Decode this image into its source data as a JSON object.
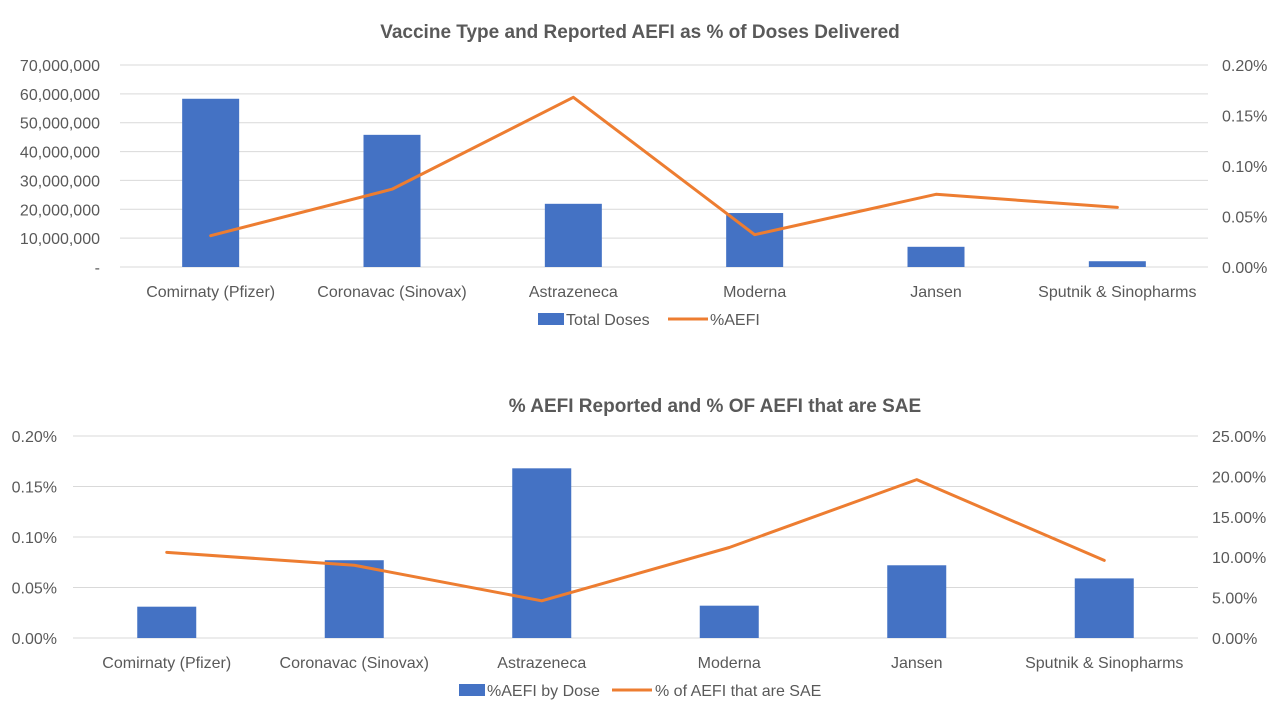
{
  "colors": {
    "bar": "#4472c4",
    "line": "#ed7d31",
    "grid": "#d9d9d9",
    "text": "#595959"
  },
  "chart_data": [
    {
      "type": "bar",
      "title": "Vaccine Type and Reported AEFI as % of Doses Delivered",
      "categories": [
        "Comirnaty (Pfizer)",
        "Coronavac (Sinovax)",
        "Astrazeneca",
        "Moderna",
        "Jansen",
        "Sputnik & Sinopharms"
      ],
      "series": [
        {
          "name": "Total Doses",
          "type": "bar",
          "axis": "left",
          "values": [
            58300000,
            45800000,
            21900000,
            18700000,
            7000000,
            2000000
          ]
        },
        {
          "name": "%AEFI",
          "type": "line",
          "axis": "right",
          "values": [
            0.00031,
            0.00077,
            0.00168,
            0.00032,
            0.00072,
            0.00059
          ]
        }
      ],
      "ylim": [
        0,
        70000000
      ],
      "y2lim": [
        0,
        0.002
      ],
      "yticks": [
        "-",
        "10,000,000",
        "20,000,000",
        "30,000,000",
        "40,000,000",
        "50,000,000",
        "60,000,000",
        "70,000,000"
      ],
      "y2ticks": [
        "0.00%",
        "0.05%",
        "0.10%",
        "0.15%",
        "0.20%"
      ],
      "grid": true,
      "legend": "bottom"
    },
    {
      "type": "bar",
      "title": "% AEFI Reported and % OF AEFI that are SAE",
      "categories": [
        "Comirnaty (Pfizer)",
        "Coronavac (Sinovax)",
        "Astrazeneca",
        "Moderna",
        "Jansen",
        "Sputnik & Sinopharms"
      ],
      "series": [
        {
          "name": "%AEFI by Dose",
          "type": "bar",
          "axis": "left",
          "values": [
            0.00031,
            0.00077,
            0.00168,
            0.00032,
            0.00072,
            0.00059
          ]
        },
        {
          "name": "% of AEFI that are SAE",
          "type": "line",
          "axis": "right",
          "values": [
            0.106,
            0.09,
            0.046,
            0.112,
            0.196,
            0.096
          ]
        }
      ],
      "ylim": [
        0,
        0.002
      ],
      "y2lim": [
        0,
        0.25
      ],
      "yticks": [
        "0.00%",
        "0.05%",
        "0.10%",
        "0.15%",
        "0.20%"
      ],
      "y2ticks": [
        "0.00%",
        "5.00%",
        "10.00%",
        "15.00%",
        "20.00%",
        "25.00%"
      ],
      "grid": true,
      "legend": "bottom"
    }
  ]
}
